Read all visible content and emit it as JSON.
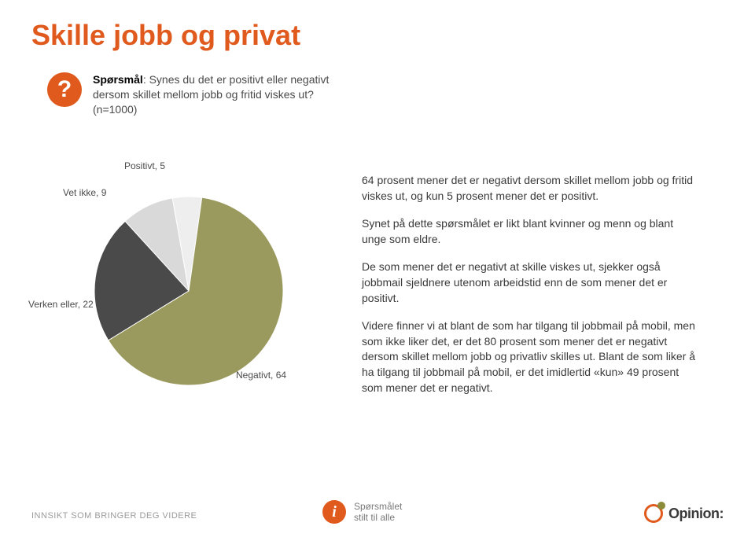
{
  "title": "Skille jobb og privat",
  "question": {
    "label": "Spørsmål",
    "text": ": Synes du det er positivt eller negativt dersom skillet mellom jobb og fritid viskes ut? (n=1000)"
  },
  "chart": {
    "type": "pie",
    "background_color": "#ffffff",
    "slices": [
      {
        "label": "Positivt, 5",
        "value": 5,
        "color": "#eeeeee"
      },
      {
        "label": "Vet ikke, 9",
        "value": 9,
        "color": "#d9d9d9"
      },
      {
        "label": "Verken eller, 22",
        "value": 22,
        "color": "#4a4a4a"
      },
      {
        "label": "Negativt, 64",
        "value": 64,
        "color": "#9a9a5e"
      }
    ],
    "label_fontsize": 12,
    "label_color": "#4a4a4a",
    "start_angle_deg": -82,
    "radius": 120
  },
  "paragraphs": [
    "64 prosent mener det er negativt dersom skillet mellom jobb og fritid viskes ut, og kun 5 prosent mener det er positivt.",
    "Synet på dette spørsmålet er likt blant kvinner og menn og blant unge som eldre.",
    "De som mener det er negativt at skille viskes ut, sjekker også jobbmail sjeldnere utenom arbeidstid enn de som mener det er positivt.",
    "Videre finner vi at blant de som har tilgang til jobbmail på mobil, men som ikke liker det, er det 80 prosent som mener det er negativt dersom skillet mellom jobb og privatliv skilles ut. Blant de som liker å ha tilgang til jobbmail på mobil, er det imidlertid «kun» 49 prosent som mener det er negativt."
  ],
  "footer": {
    "tagline": "INNSIKT SOM BRINGER DEG VIDERE",
    "info_line1": "Spørsmålet",
    "info_line2": "stilt til alle",
    "brand": "Opinion:",
    "brand_color": "#e05a1d",
    "brand_accent": "#8b8b3a"
  }
}
